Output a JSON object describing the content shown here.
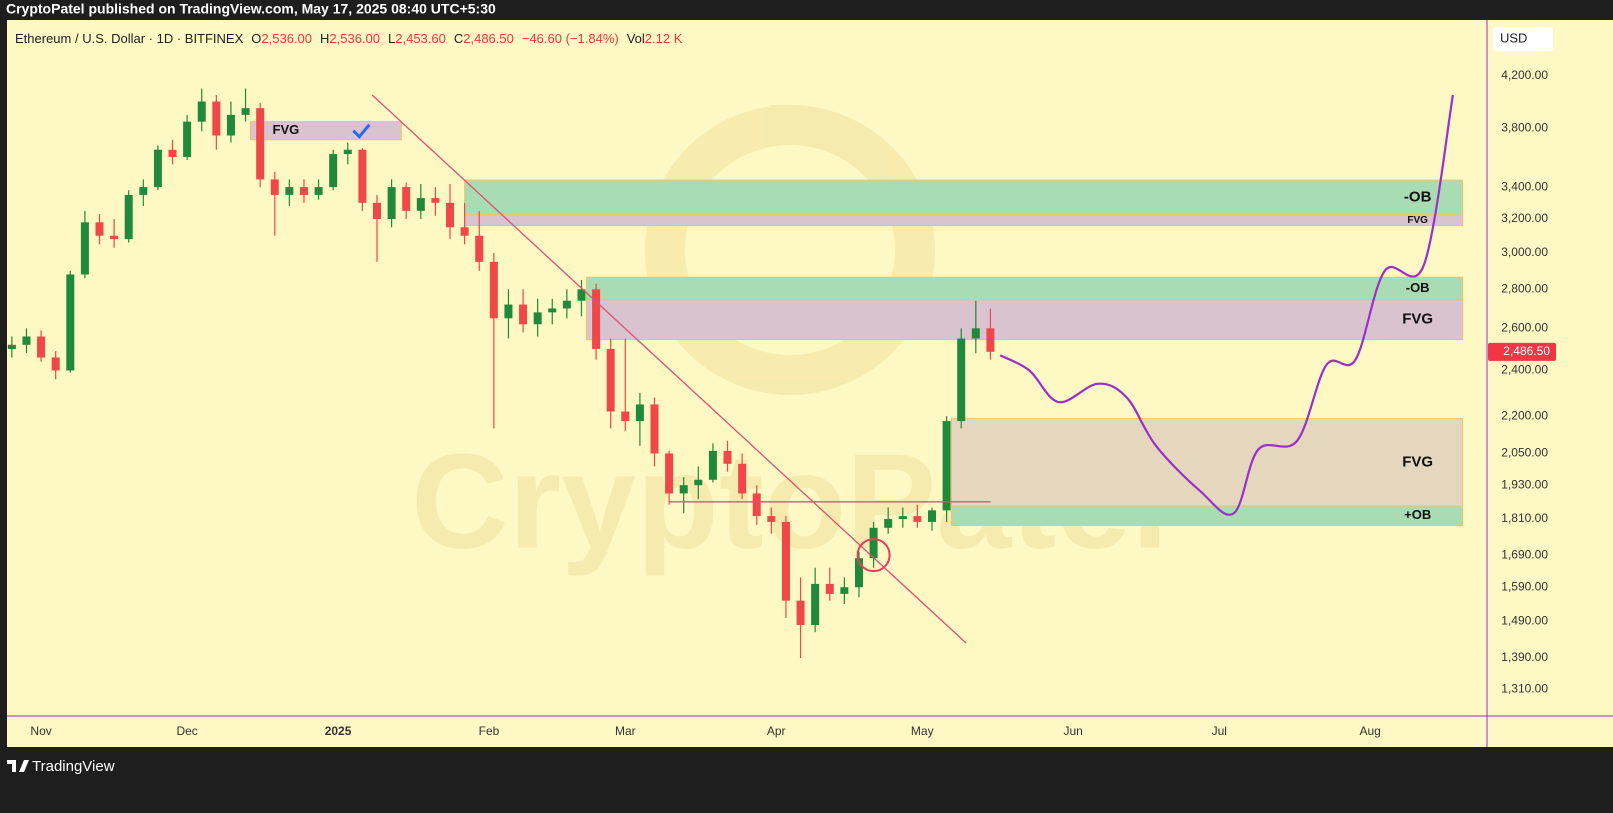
{
  "header": {
    "publisher": "CryptoPatel published on TradingView.com, May 17, 2025 08:40 UTC+5:30"
  },
  "chart_data": {
    "type": "candlestick",
    "legend": {
      "symbol": "Ethereum / U.S. Dollar · 1D · BITFINEX",
      "fields": [
        {
          "key": "O",
          "value": "2,536.00"
        },
        {
          "key": "H",
          "value": "2,536.00"
        },
        {
          "key": "L",
          "value": "2,453.60"
        },
        {
          "key": "C",
          "value": "2,486.50"
        }
      ],
      "change": "−46.60 (−1.84%)",
      "volume": {
        "key": "Vol",
        "value": "2.12 K"
      }
    },
    "currency": "USD",
    "watermark": "CryptoPatel",
    "log_scale": true,
    "xlim": [
      -1,
      303
    ],
    "xticks": [
      {
        "value": 6,
        "label": "Nov"
      },
      {
        "value": 36,
        "label": "Dec"
      },
      {
        "value": 67,
        "label": "2025"
      },
      {
        "value": 98,
        "label": "Feb"
      },
      {
        "value": 126,
        "label": "Mar"
      },
      {
        "value": 157,
        "label": "Apr"
      },
      {
        "value": 187,
        "label": "May"
      },
      {
        "value": 218,
        "label": "Jun"
      },
      {
        "value": 248,
        "label": "Jul"
      },
      {
        "value": 279,
        "label": "Aug"
      }
    ],
    "ylim": [
      1245,
      4670
    ],
    "yticks": [
      {
        "value": 4200,
        "label": "4,200.00"
      },
      {
        "value": 3800,
        "label": "3,800.00"
      },
      {
        "value": 3400,
        "label": "3,400.00"
      },
      {
        "value": 3200,
        "label": "3,200.00"
      },
      {
        "value": 3000,
        "label": "3,000.00"
      },
      {
        "value": 2800,
        "label": "2,800.00"
      },
      {
        "value": 2600,
        "label": "2,600.00"
      },
      {
        "value": 2400,
        "label": "2,400.00"
      },
      {
        "value": 2200,
        "label": "2,200.00"
      },
      {
        "value": 2050,
        "label": "2,050.00"
      },
      {
        "value": 1930,
        "label": "1,930.00"
      },
      {
        "value": 1810,
        "label": "1,810.00"
      },
      {
        "value": 1690,
        "label": "1,690.00"
      },
      {
        "value": 1590,
        "label": "1,590.00"
      },
      {
        "value": 1490,
        "label": "1,490.00"
      },
      {
        "value": 1390,
        "label": "1,390.00"
      },
      {
        "value": 1310,
        "label": "1,310.00"
      }
    ],
    "last_price": {
      "value": 2486.5,
      "label": "2,486.50",
      "color": "#f23645"
    },
    "up_color": "#1f8a3a",
    "down_color": "#f04848",
    "candles": {
      "x": [
        0,
        3,
        6,
        9,
        12,
        15,
        18,
        21,
        24,
        27,
        30,
        33,
        36,
        39,
        42,
        45,
        48,
        51,
        54,
        57,
        60,
        63,
        66,
        69,
        72,
        75,
        78,
        81,
        84,
        87,
        90,
        93,
        96,
        99,
        102,
        105,
        108,
        111,
        114,
        117,
        120,
        123,
        126,
        129,
        132,
        135,
        138,
        141,
        144,
        147,
        150,
        153,
        156,
        159,
        162,
        165,
        168,
        171,
        174,
        177,
        180,
        183,
        186,
        189,
        192,
        195,
        198,
        201
      ],
      "open": [
        2500,
        2520,
        2560,
        2460,
        2400,
        2880,
        3180,
        3100,
        3080,
        3350,
        3400,
        3650,
        3600,
        3850,
        4000,
        3750,
        3900,
        3950,
        3450,
        3350,
        3400,
        3350,
        3400,
        3620,
        3650,
        3300,
        3200,
        3400,
        3250,
        3330,
        3300,
        3150,
        3100,
        2950,
        2650,
        2720,
        2620,
        2680,
        2700,
        2740,
        2800,
        2500,
        2220,
        2180,
        2250,
        2050,
        1900,
        1930,
        1950,
        2060,
        2010,
        1900,
        1820,
        1800,
        1550,
        1480,
        1600,
        1570,
        1590,
        1680,
        1780,
        1810,
        1820,
        1800,
        1840,
        2180,
        2550,
        2600
      ],
      "high": [
        2560,
        2600,
        2590,
        2490,
        2900,
        3250,
        3230,
        3200,
        3380,
        3450,
        3680,
        3720,
        3900,
        4100,
        4050,
        4000,
        4100,
        3990,
        3500,
        3450,
        3450,
        3450,
        3650,
        3700,
        3660,
        3350,
        3450,
        3430,
        3420,
        3400,
        3420,
        3300,
        3250,
        3000,
        2800,
        2800,
        2750,
        2750,
        2800,
        2850,
        2830,
        2550,
        2550,
        2300,
        2280,
        2060,
        1960,
        2000,
        2090,
        2100,
        2050,
        1930,
        1850,
        1820,
        1620,
        1650,
        1650,
        1620,
        1700,
        1800,
        1850,
        1850,
        1860,
        1850,
        2200,
        2600,
        2740,
        2700
      ],
      "low": [
        2460,
        2480,
        2440,
        2360,
        2390,
        2860,
        3050,
        3030,
        3060,
        3280,
        3380,
        3550,
        3580,
        3780,
        3650,
        3700,
        3850,
        3400,
        3100,
        3280,
        3300,
        3320,
        3380,
        3550,
        3250,
        2950,
        3150,
        3200,
        3200,
        3220,
        3080,
        3050,
        2900,
        2150,
        2550,
        2580,
        2560,
        2620,
        2650,
        2660,
        2450,
        2150,
        2140,
        2080,
        2000,
        1860,
        1830,
        1880,
        1940,
        1980,
        1880,
        1790,
        1760,
        1500,
        1390,
        1460,
        1550,
        1540,
        1560,
        1650,
        1760,
        1780,
        1780,
        1770,
        1800,
        2150,
        2480,
        2450
      ],
      "close": [
        2520,
        2560,
        2460,
        2400,
        2880,
        3180,
        3100,
        3080,
        3350,
        3400,
        3650,
        3600,
        3850,
        4000,
        3750,
        3900,
        3950,
        3450,
        3350,
        3400,
        3350,
        3400,
        3620,
        3650,
        3300,
        3200,
        3400,
        3250,
        3330,
        3300,
        3150,
        3100,
        2950,
        2650,
        2720,
        2620,
        2680,
        2700,
        2740,
        2800,
        2500,
        2220,
        2180,
        2250,
        2050,
        1900,
        1930,
        1950,
        2060,
        2010,
        1900,
        1820,
        1800,
        1550,
        1480,
        1600,
        1570,
        1590,
        1680,
        1780,
        1810,
        1820,
        1800,
        1840,
        2180,
        2550,
        2600,
        2486.5
      ]
    },
    "zones": [
      {
        "label": "FVG",
        "x": [
          49,
          80
        ],
        "top": 3850,
        "bottom": 3720,
        "color": "#d8c3cf"
      },
      {
        "label": "-OB",
        "x": [
          93,
          298
        ],
        "top": 3445,
        "bottom": 3225,
        "color": "#a9dcb2"
      },
      {
        "label": "FVG",
        "x": [
          93,
          298
        ],
        "top": 3225,
        "bottom": 3160,
        "color": "#d8c3cf"
      },
      {
        "label": "-OB",
        "x": [
          118,
          298
        ],
        "top": 2865,
        "bottom": 2745,
        "color": "#a9dcb2"
      },
      {
        "label": "FVG",
        "x": [
          118,
          298
        ],
        "top": 2745,
        "bottom": 2545,
        "color": "#d8c3cf"
      },
      {
        "label": "FVG",
        "x": [
          193,
          298
        ],
        "top": 2190,
        "bottom": 1855,
        "color": "#e4d7bd"
      },
      {
        "label": "+OB",
        "x": [
          193,
          298
        ],
        "top": 1855,
        "bottom": 1788,
        "color": "#a9dcb2"
      }
    ],
    "trendlines": [
      {
        "x": [
          74,
          196
        ],
        "y": [
          4050,
          1430
        ],
        "color": "#e0506e"
      },
      {
        "x": [
          135,
          201
        ],
        "y": [
          1870,
          1870
        ],
        "color": "#e0506e"
      }
    ],
    "projection": {
      "x": [
        203,
        209,
        215,
        223,
        229,
        235,
        244,
        251,
        256,
        264,
        270,
        276,
        282,
        290,
        296
      ],
      "y": [
        2470,
        2400,
        2260,
        2340,
        2280,
        2080,
        1910,
        1830,
        2065,
        2100,
        2425,
        2450,
        2900,
        2930,
        4050
      ],
      "color": "#9b30c8"
    },
    "marker": {
      "x": 177,
      "y": 1690,
      "color": "#e0405a"
    }
  },
  "footer": {
    "brand": "TradingView"
  }
}
